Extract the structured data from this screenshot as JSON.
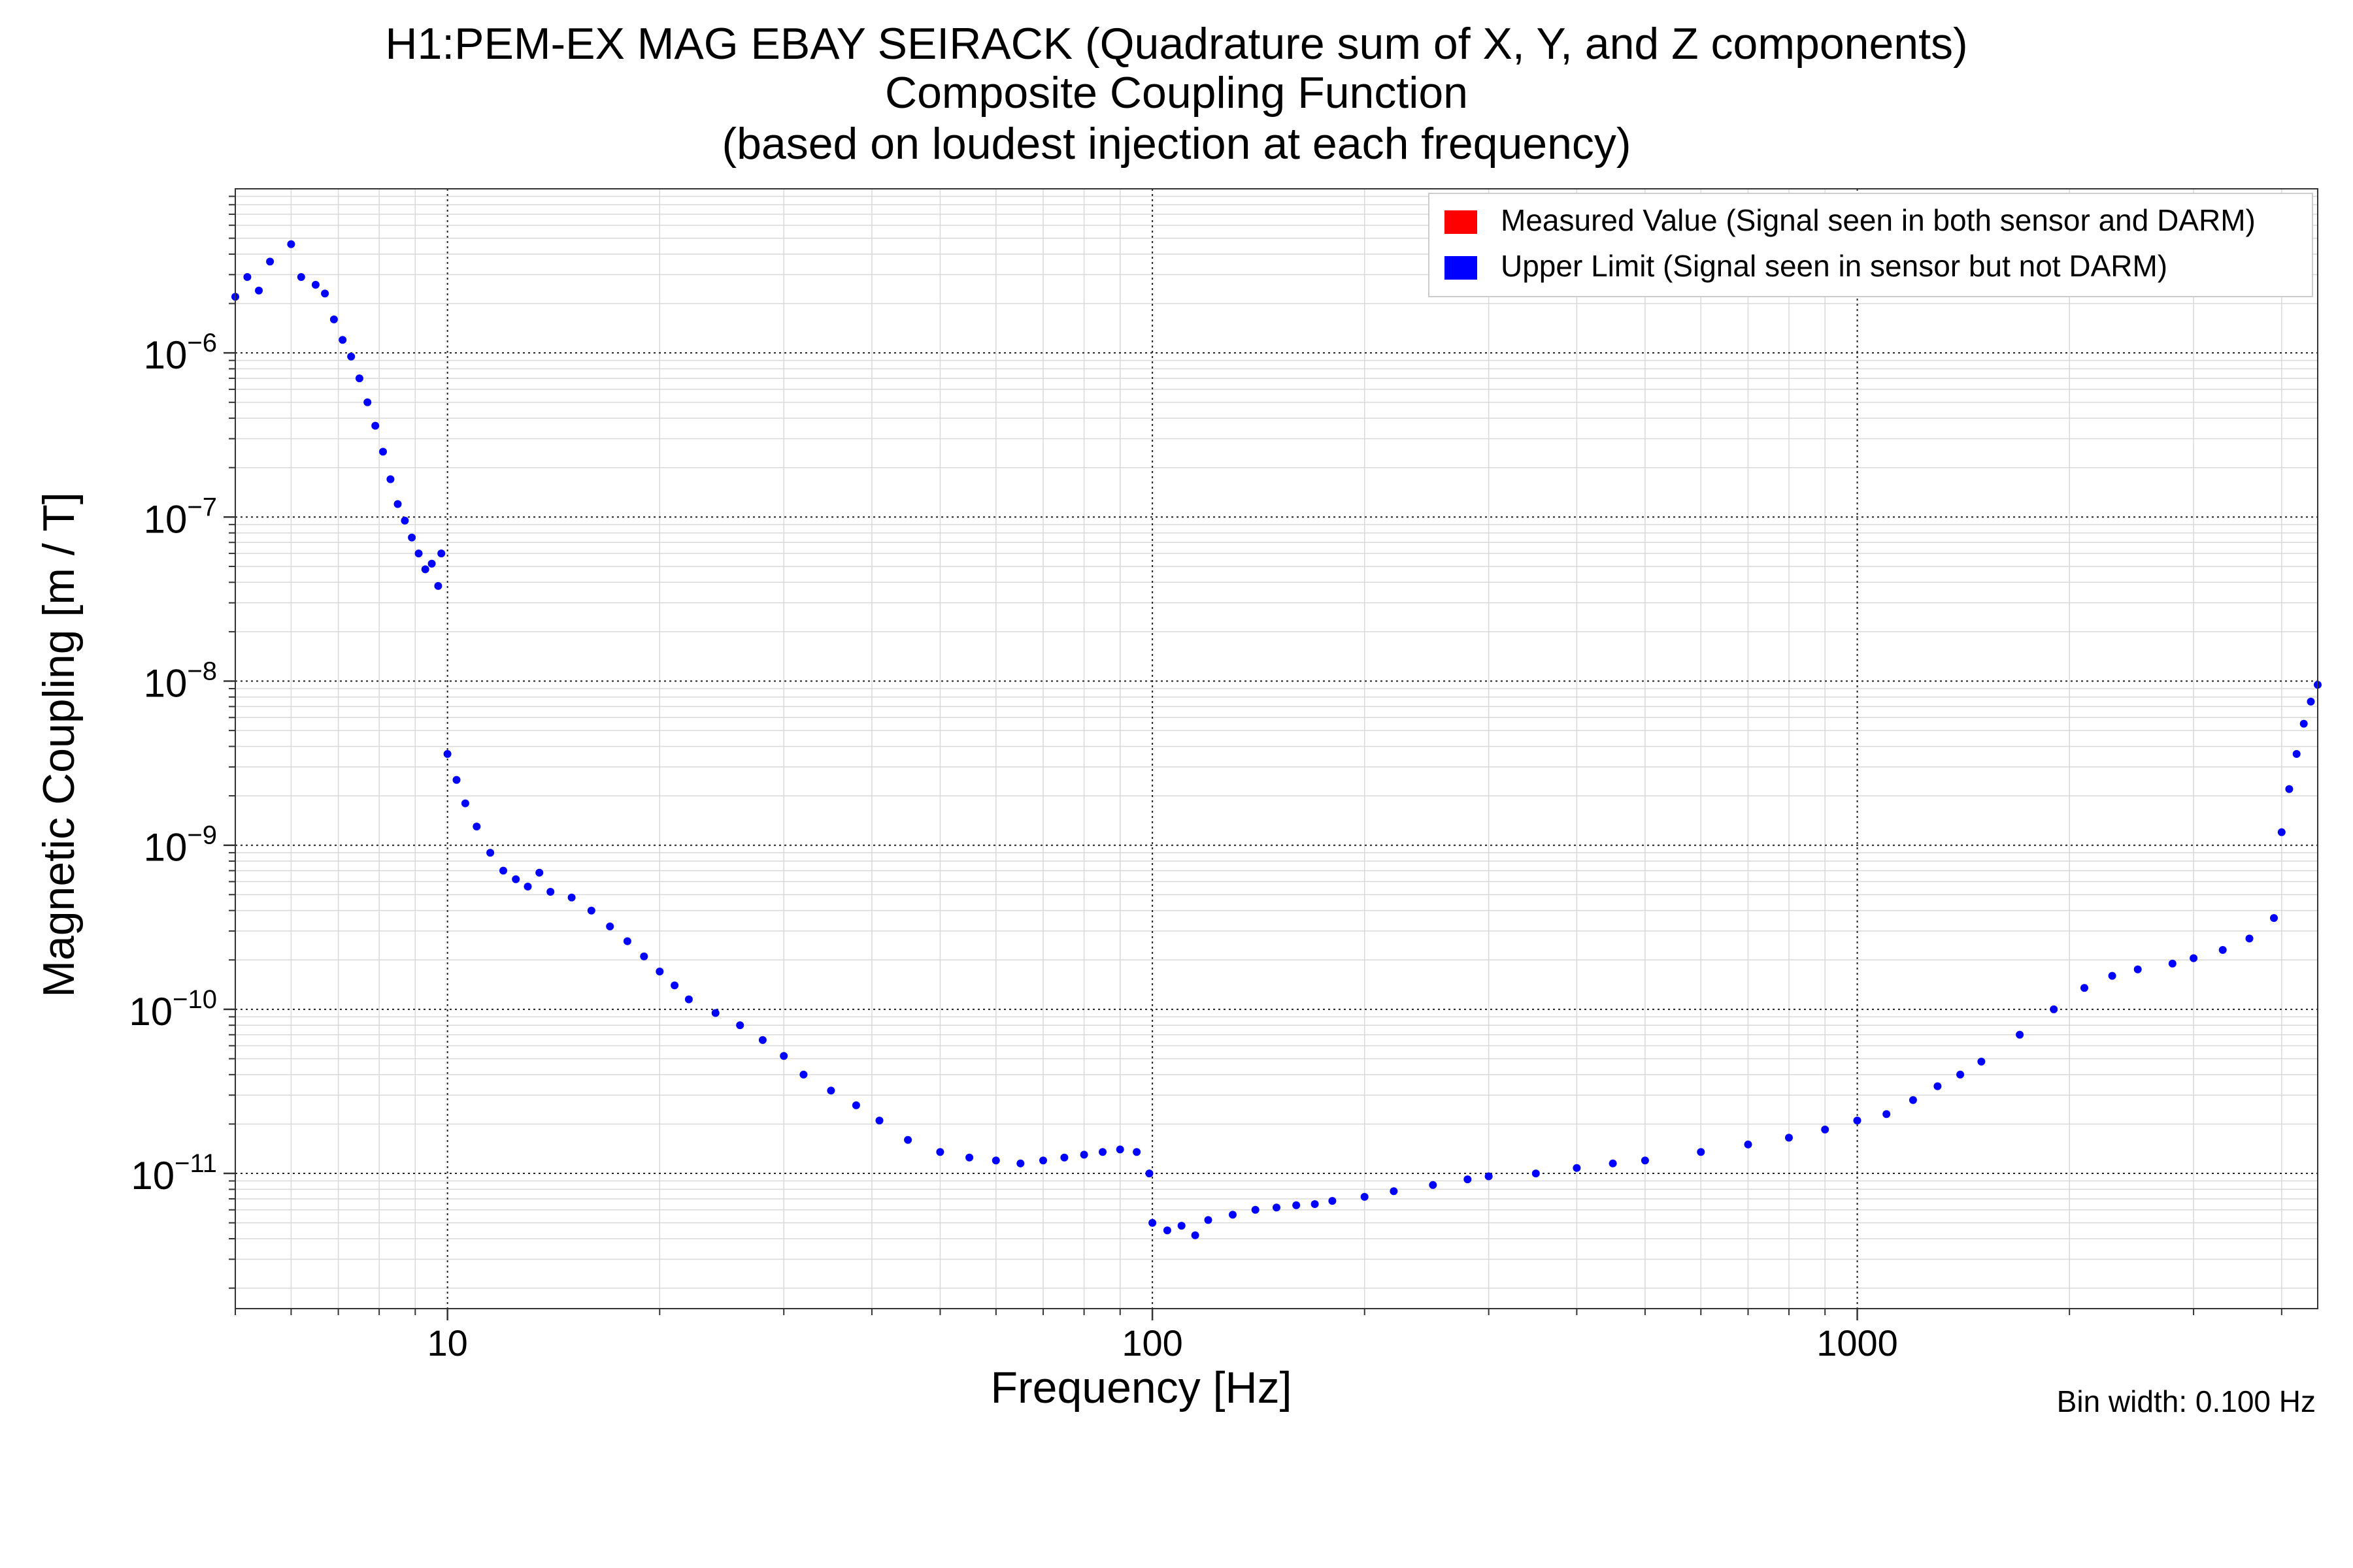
{
  "title_lines": [
    "H1:PEM-EX MAG EBAY SEIRACK (Quadrature sum of X, Y, and Z components)",
    "Composite Coupling Function",
    "(based on loudest injection at each frequency)"
  ],
  "footer": {
    "bin_width": "Bin width: 0.100 Hz"
  },
  "colors": {
    "measured": "#ff0000",
    "upper_limit": "#0000ff",
    "grid_major": "#222222",
    "grid_minor": "#d9d9d9"
  },
  "chart_data": {
    "type": "scatter",
    "title": "H1:PEM-EX MAG EBAY SEIRACK (Quadrature sum of X, Y, and Z components)\nComposite Coupling Function\n(based on loudest injection at each frequency)",
    "xlabel": "Frequency [Hz]",
    "ylabel": "Magnetic Coupling [m / T]",
    "xscale": "log",
    "yscale": "log",
    "xlim": [
      5,
      4500
    ],
    "ylim": [
      1.5e-12,
      1e-05
    ],
    "x_ticks": [
      {
        "value": 10,
        "label": "10"
      },
      {
        "value": 100,
        "label": "100"
      },
      {
        "value": 1000,
        "label": "1000"
      }
    ],
    "y_ticks": [
      {
        "value": 1e-06,
        "base": "10",
        "exp": "−6"
      },
      {
        "value": 1e-07,
        "base": "10",
        "exp": "−7"
      },
      {
        "value": 1e-08,
        "base": "10",
        "exp": "−8"
      },
      {
        "value": 1e-09,
        "base": "10",
        "exp": "−9"
      },
      {
        "value": 1e-10,
        "base": "10",
        "exp": "−10"
      },
      {
        "value": 1e-11,
        "base": "10",
        "exp": "−11"
      }
    ],
    "grid": true,
    "legend_position": "top-right",
    "series": [
      {
        "name": "Measured Value (Signal seen in both sensor and DARM)",
        "color": "#ff0000",
        "points": []
      },
      {
        "name": "Upper Limit (Signal seen in sensor but not DARM)",
        "color": "#0000ff",
        "points": [
          [
            5.0,
            2.2e-06
          ],
          [
            5.2,
            2.9e-06
          ],
          [
            5.4,
            2.4e-06
          ],
          [
            5.6,
            3.6e-06
          ],
          [
            6.0,
            4.6e-06
          ],
          [
            6.2,
            2.9e-06
          ],
          [
            6.5,
            2.6e-06
          ],
          [
            6.7,
            2.3e-06
          ],
          [
            6.9,
            1.6e-06
          ],
          [
            7.1,
            1.2e-06
          ],
          [
            7.3,
            9.5e-07
          ],
          [
            7.5,
            7e-07
          ],
          [
            7.7,
            5e-07
          ],
          [
            7.9,
            3.6e-07
          ],
          [
            8.1,
            2.5e-07
          ],
          [
            8.3,
            1.7e-07
          ],
          [
            8.5,
            1.2e-07
          ],
          [
            8.7,
            9.5e-08
          ],
          [
            8.9,
            7.5e-08
          ],
          [
            9.1,
            6e-08
          ],
          [
            9.3,
            4.8e-08
          ],
          [
            9.5,
            5.2e-08
          ],
          [
            9.7,
            3.8e-08
          ],
          [
            9.8,
            6e-08
          ],
          [
            10.0,
            3.6e-09
          ],
          [
            10.3,
            2.5e-09
          ],
          [
            10.6,
            1.8e-09
          ],
          [
            11.0,
            1.3e-09
          ],
          [
            11.5,
            9e-10
          ],
          [
            12.0,
            7e-10
          ],
          [
            12.5,
            6.2e-10
          ],
          [
            13.0,
            5.6e-10
          ],
          [
            13.5,
            6.8e-10
          ],
          [
            14.0,
            5.2e-10
          ],
          [
            15.0,
            4.8e-10
          ],
          [
            16.0,
            4e-10
          ],
          [
            17.0,
            3.2e-10
          ],
          [
            18.0,
            2.6e-10
          ],
          [
            19.0,
            2.1e-10
          ],
          [
            20.0,
            1.7e-10
          ],
          [
            21.0,
            1.4e-10
          ],
          [
            22.0,
            1.15e-10
          ],
          [
            24.0,
            9.5e-11
          ],
          [
            26.0,
            8e-11
          ],
          [
            28.0,
            6.5e-11
          ],
          [
            30.0,
            5.2e-11
          ],
          [
            32.0,
            4e-11
          ],
          [
            35.0,
            3.2e-11
          ],
          [
            38.0,
            2.6e-11
          ],
          [
            41.0,
            2.1e-11
          ],
          [
            45.0,
            1.6e-11
          ],
          [
            50.0,
            1.35e-11
          ],
          [
            55.0,
            1.25e-11
          ],
          [
            60.0,
            1.2e-11
          ],
          [
            65.0,
            1.15e-11
          ],
          [
            70.0,
            1.2e-11
          ],
          [
            75.0,
            1.25e-11
          ],
          [
            80.0,
            1.3e-11
          ],
          [
            85.0,
            1.35e-11
          ],
          [
            90.0,
            1.4e-11
          ],
          [
            95.0,
            1.35e-11
          ],
          [
            99.0,
            1e-11
          ],
          [
            100.0,
            5e-12
          ],
          [
            105.0,
            4.5e-12
          ],
          [
            110.0,
            4.8e-12
          ],
          [
            115.0,
            4.2e-12
          ],
          [
            120.0,
            5.2e-12
          ],
          [
            130.0,
            5.6e-12
          ],
          [
            140.0,
            6e-12
          ],
          [
            150.0,
            6.2e-12
          ],
          [
            160.0,
            6.4e-12
          ],
          [
            170.0,
            6.5e-12
          ],
          [
            180.0,
            6.8e-12
          ],
          [
            200.0,
            7.2e-12
          ],
          [
            220.0,
            7.8e-12
          ],
          [
            250.0,
            8.5e-12
          ],
          [
            280.0,
            9.2e-12
          ],
          [
            300.0,
            9.6e-12
          ],
          [
            350.0,
            1e-11
          ],
          [
            400.0,
            1.08e-11
          ],
          [
            450.0,
            1.15e-11
          ],
          [
            500.0,
            1.2e-11
          ],
          [
            600.0,
            1.35e-11
          ],
          [
            700.0,
            1.5e-11
          ],
          [
            800.0,
            1.65e-11
          ],
          [
            900.0,
            1.85e-11
          ],
          [
            1000.0,
            2.1e-11
          ],
          [
            1100.0,
            2.3e-11
          ],
          [
            1200.0,
            2.8e-11
          ],
          [
            1300.0,
            3.4e-11
          ],
          [
            1400.0,
            4e-11
          ],
          [
            1500.0,
            4.8e-11
          ],
          [
            1700.0,
            7e-11
          ],
          [
            1900.0,
            1e-10
          ],
          [
            2100.0,
            1.35e-10
          ],
          [
            2300.0,
            1.6e-10
          ],
          [
            2500.0,
            1.75e-10
          ],
          [
            2800.0,
            1.9e-10
          ],
          [
            3000.0,
            2.05e-10
          ],
          [
            3300.0,
            2.3e-10
          ],
          [
            3600.0,
            2.7e-10
          ],
          [
            3900.0,
            3.6e-10
          ],
          [
            4000.0,
            1.2e-09
          ],
          [
            4100.0,
            2.2e-09
          ],
          [
            4200.0,
            3.6e-09
          ],
          [
            4300.0,
            5.5e-09
          ],
          [
            4400.0,
            7.5e-09
          ],
          [
            4500.0,
            9.5e-09
          ]
        ]
      }
    ]
  }
}
